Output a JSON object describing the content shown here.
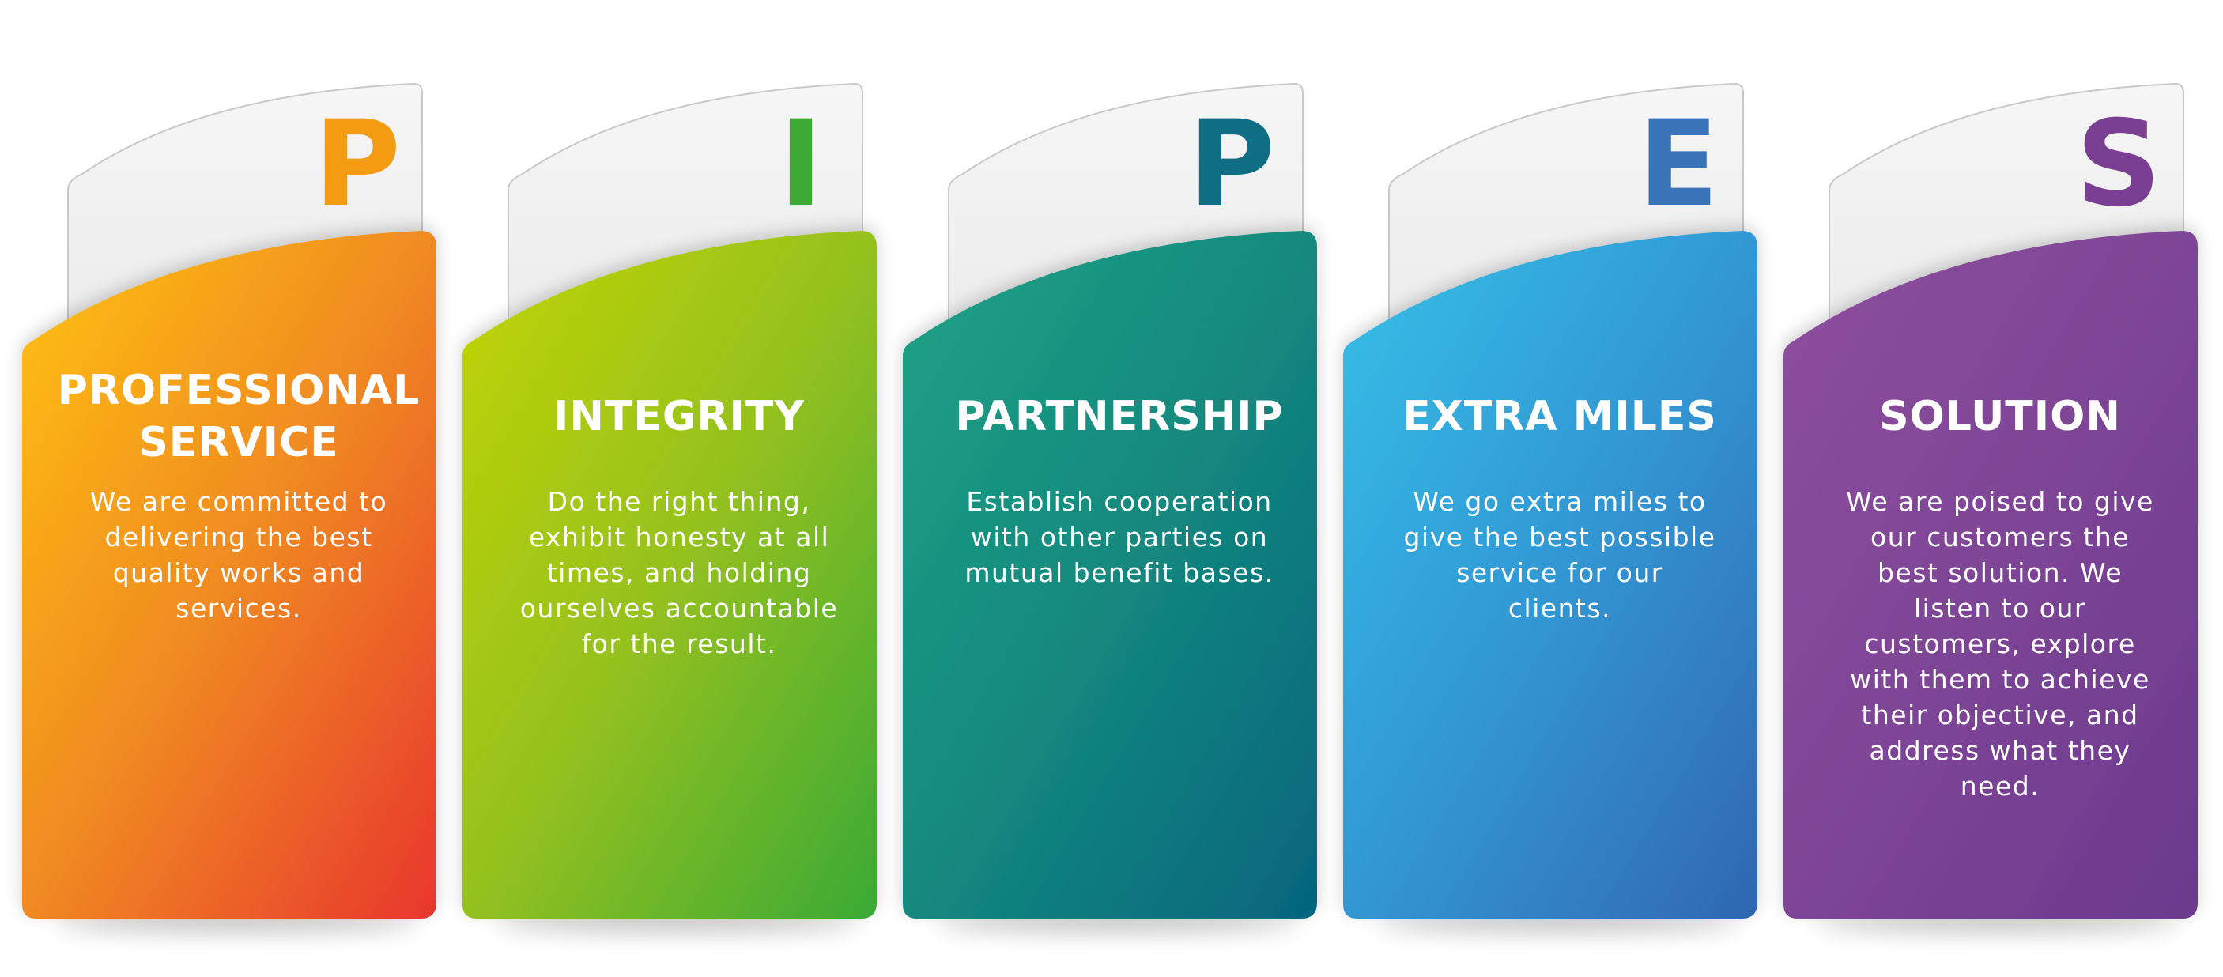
{
  "pillars": [
    {
      "letter": "P",
      "title": "PROFESSIONAL\nSERVICE",
      "description": "We are committed to\ndelivering the best\nquality works and\nservices.",
      "letter_color": "#F39C12",
      "gradient": [
        "#FFC30F",
        "#F08A22",
        "#E8362E"
      ]
    },
    {
      "letter": "I",
      "title": "INTEGRITY",
      "description": "Do the right thing,\nexhibit honesty at all\ntimes, and holding\nourselves accountable\nfor the result.",
      "letter_color": "#3DAA35",
      "gradient": [
        "#C3D500",
        "#95C11F",
        "#3AAA35"
      ]
    },
    {
      "letter": "P",
      "title": "PARTNERSHIP",
      "description": "Establish cooperation\nwith other parties on\nmutual benefit bases.",
      "letter_color": "#0F6E84",
      "gradient": [
        "#1FA386",
        "#14897E",
        "#05657E"
      ]
    },
    {
      "letter": "E",
      "title": "EXTRA MILES",
      "description": "We go extra miles to\ngive the best possible\nservice for our\nclients.",
      "letter_color": "#3A74B8",
      "gradient": [
        "#35C0E8",
        "#3298D4",
        "#2F67B1"
      ]
    },
    {
      "letter": "S",
      "title": "SOLUTION",
      "description": "We are poised to give\nour customers the\nbest solution. We\nlisten to our\ncustomers, explore\nwith them to achieve\ntheir objective, and\naddress what they\nneed.",
      "letter_color": "#7A3E92",
      "gradient": [
        "#8E4E9E",
        "#7E4596",
        "#6B3A8E"
      ]
    }
  ]
}
